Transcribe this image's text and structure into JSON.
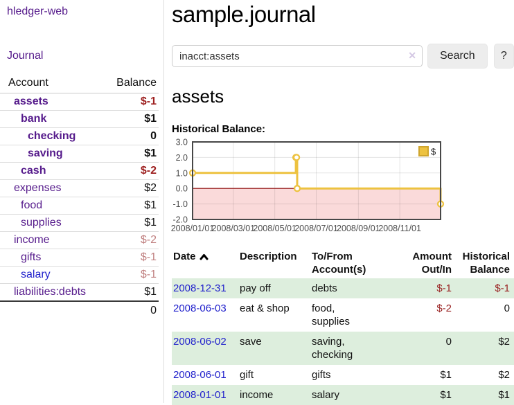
{
  "app": {
    "brand": "hledger-web"
  },
  "sidebar": {
    "journal_link": "Journal",
    "accounts_table": {
      "headers": {
        "account": "Account",
        "balance": "Balance"
      },
      "rows": [
        {
          "account": "assets",
          "balance": "$-1",
          "indent": 0,
          "bold": true,
          "account_color": "purple",
          "balance_color": "strongneg"
        },
        {
          "account": "bank",
          "balance": "$1",
          "indent": 1,
          "bold": true,
          "account_color": "purple",
          "balance_color": "plain"
        },
        {
          "account": "checking",
          "balance": "0",
          "indent": 2,
          "bold": true,
          "account_color": "purple",
          "balance_color": "plain"
        },
        {
          "account": "saving",
          "balance": "$1",
          "indent": 2,
          "bold": true,
          "account_color": "purple",
          "balance_color": "plain"
        },
        {
          "account": "cash",
          "balance": "$-2",
          "indent": 1,
          "bold": true,
          "account_color": "purple",
          "balance_color": "strongneg"
        },
        {
          "account": "expenses",
          "balance": "$2",
          "indent": 0,
          "bold": false,
          "account_color": "purple",
          "balance_color": "plain"
        },
        {
          "account": "food",
          "balance": "$1",
          "indent": 1,
          "bold": false,
          "account_color": "purple",
          "balance_color": "plain"
        },
        {
          "account": "supplies",
          "balance": "$1",
          "indent": 1,
          "bold": false,
          "account_color": "purple",
          "balance_color": "plain"
        },
        {
          "account": "income",
          "balance": "$-2",
          "indent": 0,
          "bold": false,
          "account_color": "purple",
          "balance_color": "softneg"
        },
        {
          "account": "gifts",
          "balance": "$-1",
          "indent": 1,
          "bold": false,
          "account_color": "purple",
          "balance_color": "softneg"
        },
        {
          "account": "salary",
          "balance": "$-1",
          "indent": 1,
          "bold": false,
          "account_color": "blue",
          "balance_color": "softneg"
        },
        {
          "account": "liabilities:debts",
          "balance": "$1",
          "indent": 0,
          "bold": false,
          "account_color": "purple",
          "balance_color": "plain"
        }
      ],
      "total": "0"
    }
  },
  "main": {
    "title": "sample.journal",
    "search": {
      "value": "inacct:assets",
      "clear_icon": "✕",
      "search_button": "Search",
      "help_button": "?"
    },
    "account_heading": "assets",
    "chart_title": "Historical Balance:"
  },
  "chart_data": {
    "type": "line",
    "step": true,
    "title": "Historical Balance of assets",
    "series": [
      {
        "name": "$",
        "color": "#edc240",
        "points": [
          {
            "date": "2008-01-01",
            "value": 1
          },
          {
            "date": "2008-06-01",
            "value": 2
          },
          {
            "date": "2008-06-02",
            "value": 2
          },
          {
            "date": "2008-06-03",
            "value": 0
          },
          {
            "date": "2008-12-31",
            "value": -1
          }
        ]
      }
    ],
    "x_range": [
      "2008-01-01",
      "2008-12-31"
    ],
    "x_ticks": [
      {
        "date": "2008-01-01",
        "label": "2008/01/01"
      },
      {
        "date": "2008-03-01",
        "label": "2008/03/01"
      },
      {
        "date": "2008-05-01",
        "label": "2008/05/01"
      },
      {
        "date": "2008-07-01",
        "label": "2008/07/01"
      },
      {
        "date": "2008-09-01",
        "label": "2008/09/01"
      },
      {
        "date": "2008-11-01",
        "label": "2008/11/01"
      }
    ],
    "y_ticks": [
      {
        "value": 3,
        "label": "3.0"
      },
      {
        "value": 2,
        "label": "2.0"
      },
      {
        "value": 1,
        "label": "1.0"
      },
      {
        "value": 0,
        "label": "0.0"
      },
      {
        "value": -1,
        "label": "-1.0"
      },
      {
        "value": -2,
        "label": "-2.0"
      }
    ],
    "ylim": [
      -2,
      3
    ],
    "grid": true,
    "legend_position": "top-right",
    "negative_region_color": "#fadada",
    "zero_line_color": "#992222",
    "border_color": "#474747"
  },
  "register": {
    "headers": {
      "date": "Date",
      "description": "Description",
      "accounts": "To/From Account(s)",
      "amount": "Amount Out/In",
      "balance": "Historical Balance"
    },
    "rows": [
      {
        "date": "2008-12-31",
        "description": "pay off",
        "accounts": "debts",
        "amount": "$-1",
        "amount_negative": true,
        "balance": "$-1",
        "balance_negative": true,
        "highlight": true
      },
      {
        "date": "2008-06-03",
        "description": "eat & shop",
        "accounts": "food, supplies",
        "amount": "$-2",
        "amount_negative": true,
        "balance": "0",
        "balance_negative": false,
        "highlight": false
      },
      {
        "date": "2008-06-02",
        "description": "save",
        "accounts": "saving, checking",
        "amount": "0",
        "amount_negative": false,
        "balance": "$2",
        "balance_negative": false,
        "highlight": true
      },
      {
        "date": "2008-06-01",
        "description": "gift",
        "accounts": "gifts",
        "amount": "$1",
        "amount_negative": false,
        "balance": "$2",
        "balance_negative": false,
        "highlight": false
      },
      {
        "date": "2008-01-01",
        "description": "income",
        "accounts": "salary",
        "amount": "$1",
        "amount_negative": false,
        "balance": "$1",
        "balance_negative": false,
        "highlight": true
      }
    ]
  },
  "colors": {
    "link_purple": "#551a8b",
    "link_blue": "#2222cc",
    "negative_strong": "#9d1f1f",
    "negative_soft": "#c08080",
    "row_highlight_green": "#ddeedd",
    "series_gold": "#edc240"
  }
}
